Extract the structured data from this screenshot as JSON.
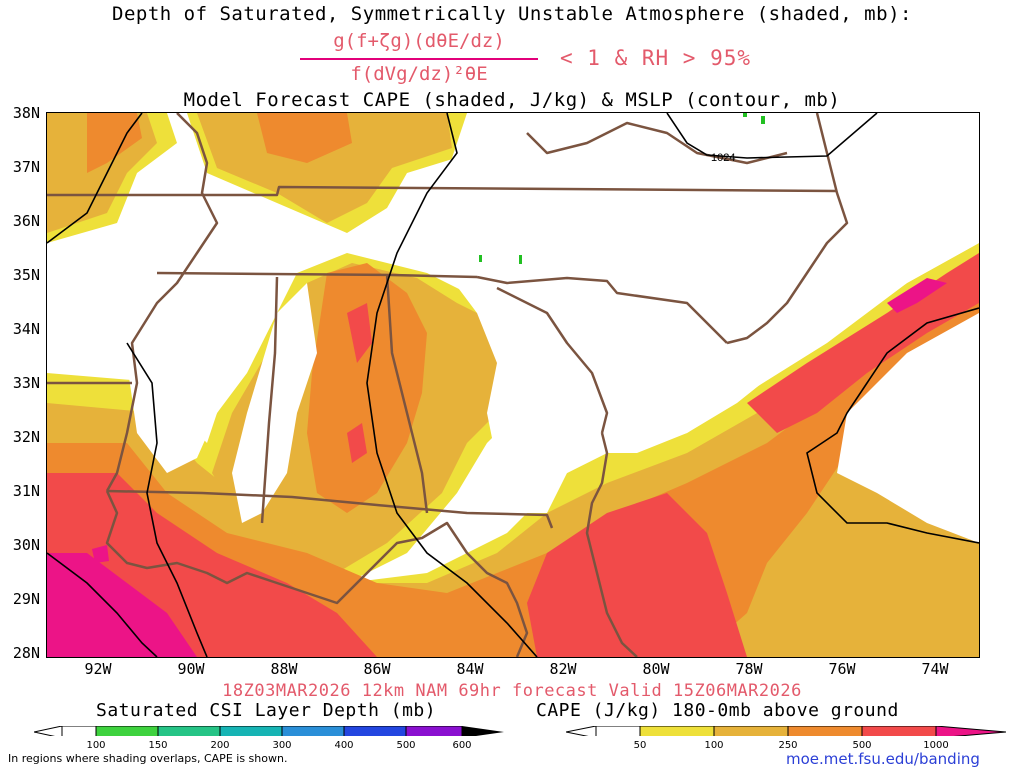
{
  "header": {
    "title_line1": "Depth of Saturated, Symmetrically Unstable Atmosphere (shaded, mb):",
    "formula_numerator": "g(f+ζg)(dθE/dz)",
    "formula_denominator": "f(dVg/dz)²θE",
    "condition": "< 1 & RH > 95%",
    "title_line3": "Model Forecast CAPE (shaded, J/kg) & MSLP (contour, mb)"
  },
  "map": {
    "lat_labels": [
      "38N",
      "37N",
      "36N",
      "35N",
      "34N",
      "33N",
      "32N",
      "31N",
      "30N",
      "29N",
      "28N"
    ],
    "lon_labels": [
      "92W",
      "90W",
      "88W",
      "86W",
      "84W",
      "82W",
      "80W",
      "78W",
      "76W",
      "74W"
    ],
    "contour_label": "1024",
    "colors": {
      "cape_50": "#eee03a",
      "cape_100": "#e6b23a",
      "cape_250": "#ee8a2e",
      "cape_500": "#f24a4a",
      "cape_1000": "#ec1487",
      "state_lines": "#7b5440",
      "contour": "#000000",
      "csi": "#22c022"
    }
  },
  "footer": {
    "run_info": "18Z03MAR2026 12km NAM 69hr forecast Valid 15Z06MAR2026",
    "csi_title": "Saturated CSI Layer Depth (mb)",
    "csi_ticks": [
      "100",
      "150",
      "200",
      "300",
      "400",
      "500",
      "600"
    ],
    "csi_colors": [
      "#3ed23e",
      "#26c486",
      "#16b4b4",
      "#2a8fd8",
      "#2346e0",
      "#5522d8",
      "#8a10d0",
      "#000000"
    ],
    "cape_title": "CAPE (J/kg) 180-0mb above ground",
    "cape_ticks": [
      "50",
      "100",
      "250",
      "500",
      "1000"
    ],
    "cape_colors": [
      "#eee03a",
      "#e6b23a",
      "#ee8a2e",
      "#f24a4a",
      "#ec1487"
    ],
    "note": "In regions where shading overlaps, CAPE is shown.",
    "credit": "moe.met.fsu.edu/banding"
  }
}
